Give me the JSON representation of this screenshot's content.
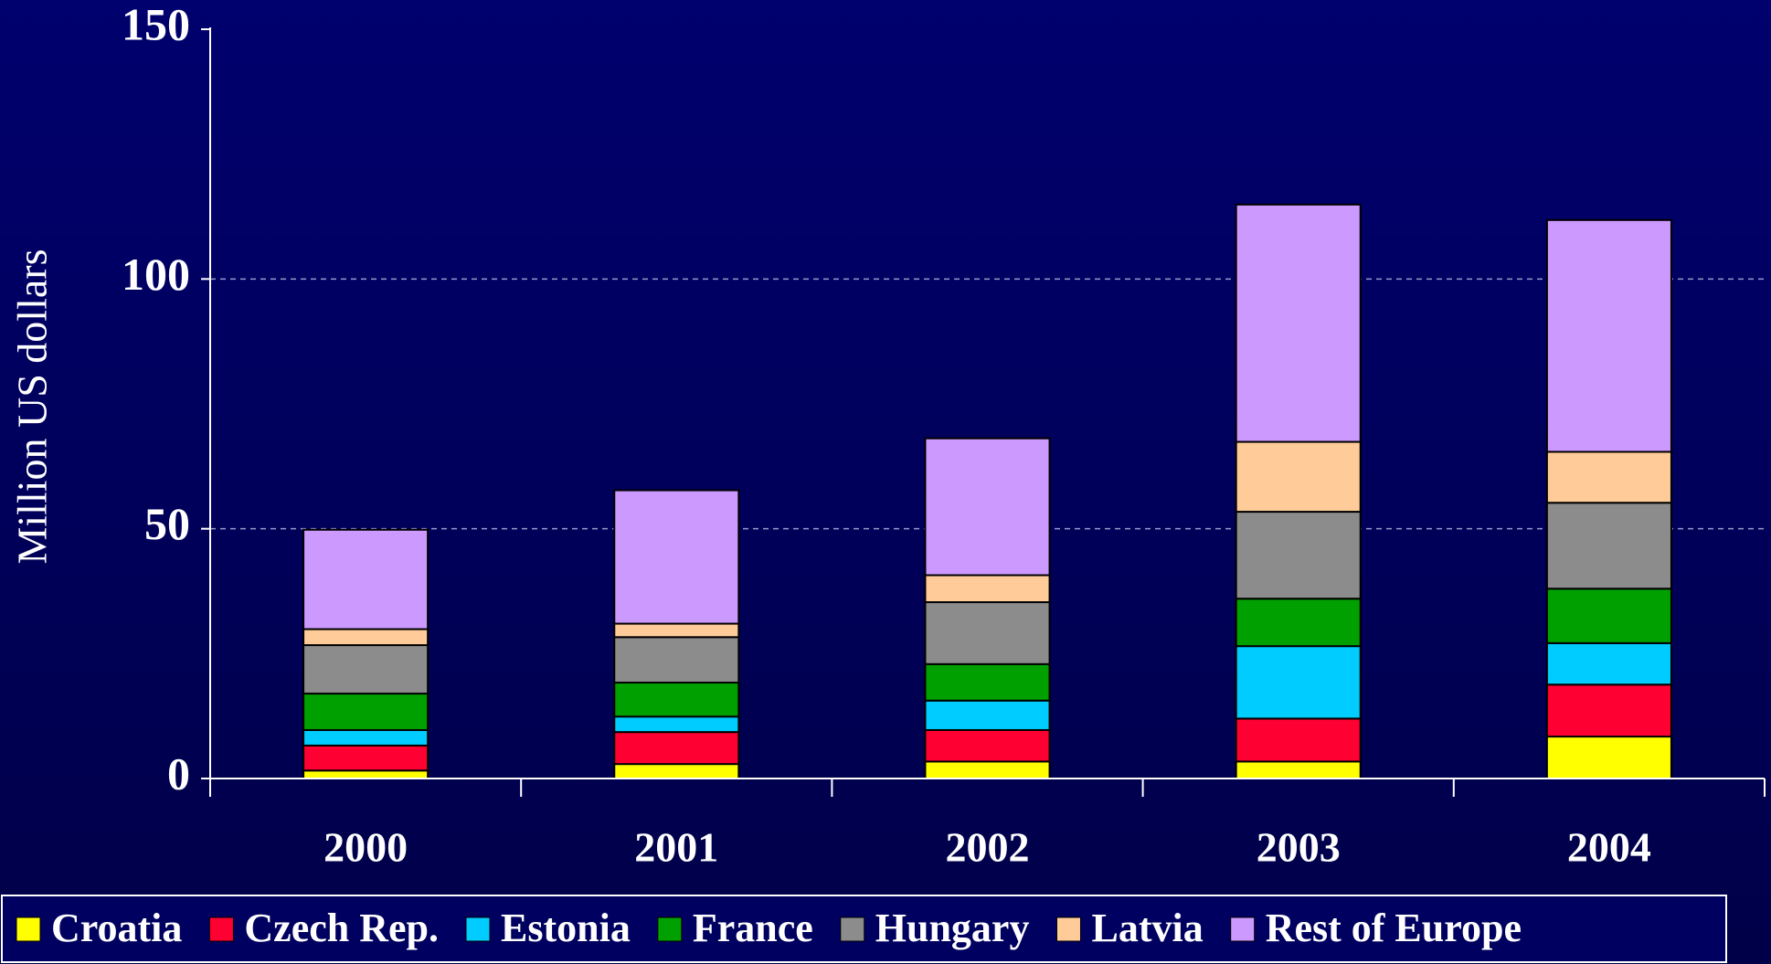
{
  "chart_data": {
    "type": "stacked_bar",
    "y_label": "Million US dollars",
    "categories": [
      "2000",
      "2001",
      "2002",
      "2003",
      "2004"
    ],
    "series": [
      {
        "name": "Croatia",
        "color": "#ffff00",
        "values": [
          1.6,
          2.9,
          3.4,
          3.4,
          8.4
        ]
      },
      {
        "name": "Czech Rep.",
        "color": "#ff0033",
        "values": [
          5.0,
          6.4,
          6.3,
          8.6,
          10.4
        ]
      },
      {
        "name": "Estonia",
        "color": "#00ccff",
        "values": [
          3.1,
          3.1,
          5.9,
          14.5,
          8.3
        ]
      },
      {
        "name": "France",
        "color": "#00a000",
        "values": [
          7.3,
          6.8,
          7.3,
          9.5,
          10.9
        ]
      },
      {
        "name": "Hungary",
        "color": "#8c8c8c",
        "values": [
          9.7,
          9.1,
          12.4,
          17.4,
          17.2
        ]
      },
      {
        "name": "Latvia",
        "color": "#ffcc99",
        "values": [
          3.2,
          2.7,
          5.4,
          14.0,
          10.2
        ]
      },
      {
        "name": "Rest of Europe",
        "color": "#cc99ff",
        "values": [
          19.9,
          26.7,
          27.4,
          47.5,
          46.4
        ]
      }
    ],
    "ylim": [
      0,
      150
    ],
    "yticks": [
      0,
      50,
      100,
      150
    ],
    "grid": true,
    "legend": "bottom"
  }
}
